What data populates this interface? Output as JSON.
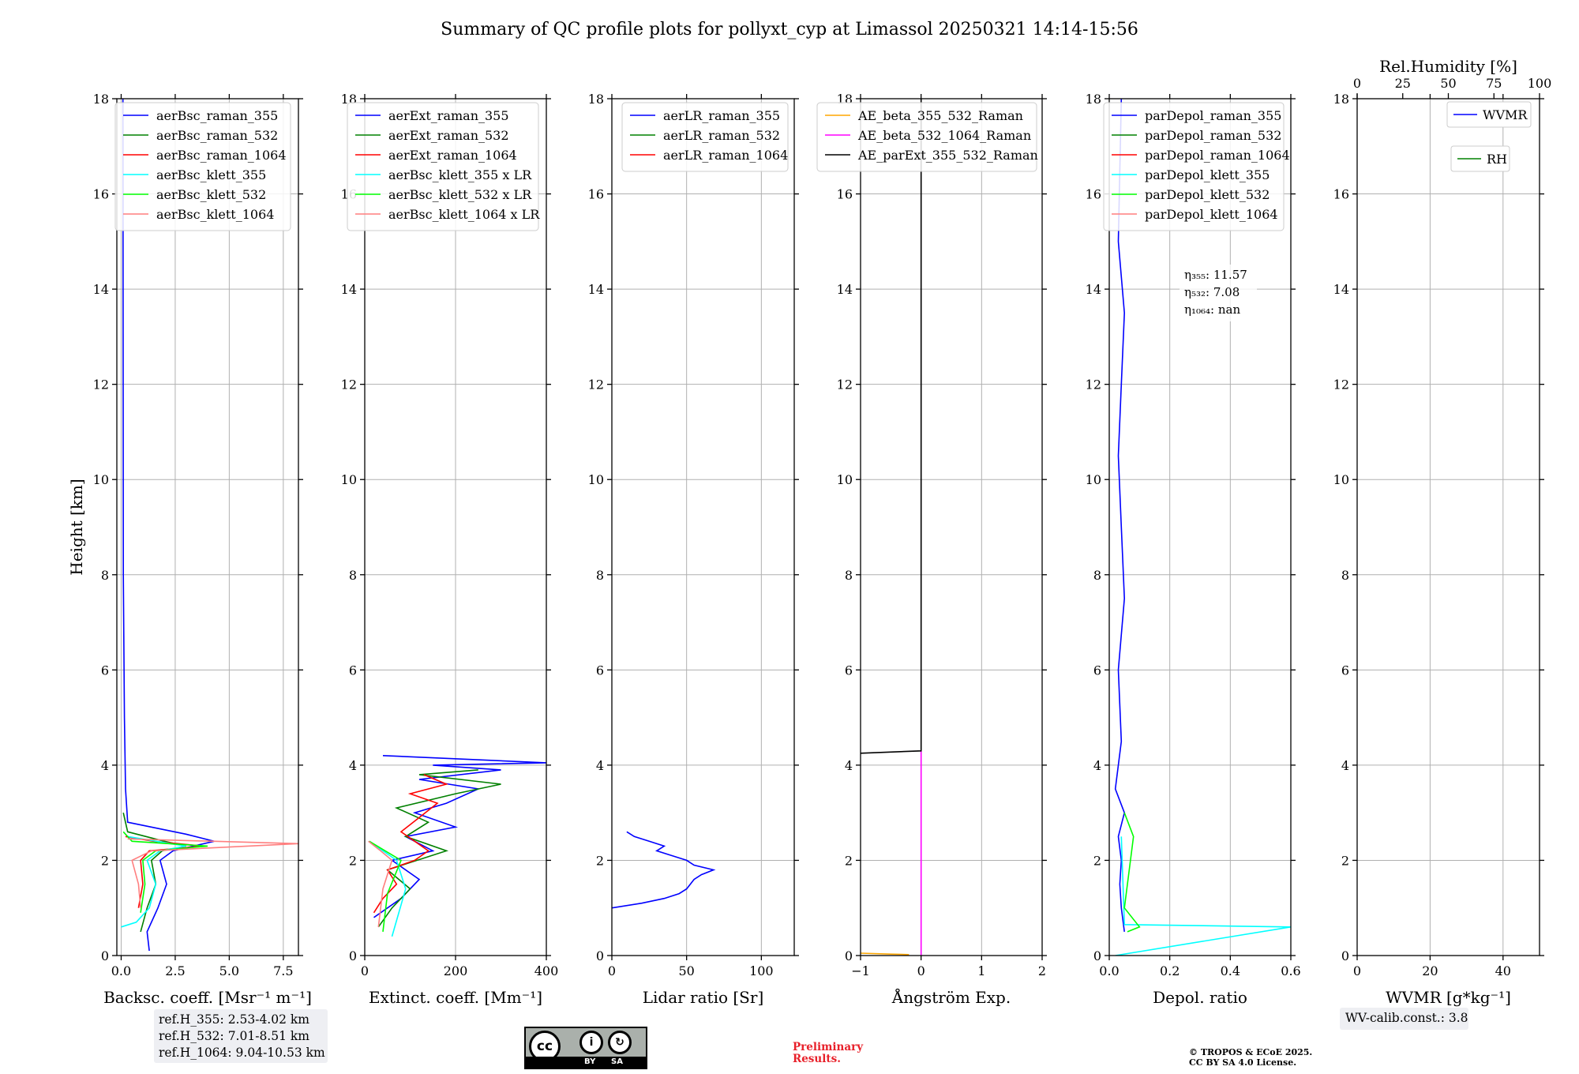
{
  "title": "Summary of QC profile plots for pollyxt_cyp at Limassol 20250321 14:14-15:56",
  "chart_data": [
    {
      "type": "line",
      "panel": "backscatter",
      "xlabel": "Backsc. coeff. [Msr⁻¹ m⁻¹]",
      "ylabel": "Height [km]",
      "xlim": [
        -0.2,
        8.2
      ],
      "ylim": [
        0,
        18
      ],
      "xticks": [
        "0.0",
        "2.5",
        "5.0",
        "7.5"
      ],
      "xtick_values": [
        0,
        2.5,
        5,
        7.5
      ],
      "yticks": [
        "0",
        "2",
        "4",
        "6",
        "8",
        "10",
        "12",
        "14",
        "16",
        "18"
      ],
      "legend": "top-right",
      "series": [
        {
          "name": "aerBsc_raman_355",
          "color": "#0000ff",
          "x": [
            1.3,
            1.2,
            1.7,
            2.1,
            1.8,
            2.4,
            4.3,
            3.0,
            0.3,
            0.2,
            0.15,
            0.1,
            0.08
          ],
          "y": [
            0.1,
            0.5,
            1.0,
            1.5,
            2.0,
            2.2,
            2.4,
            2.55,
            2.8,
            3.5,
            5.0,
            8.0,
            18.0
          ]
        },
        {
          "name": "aerBsc_raman_532",
          "color": "#008000",
          "x": [
            0.9,
            1.2,
            1.6,
            1.4,
            1.9,
            3.0,
            2.0,
            0.3,
            0.1
          ],
          "y": [
            0.5,
            1.0,
            1.5,
            2.0,
            2.2,
            2.3,
            2.4,
            2.6,
            3.0
          ]
        },
        {
          "name": "aerBsc_raman_1064",
          "color": "#ff0000",
          "x": [
            0.8,
            1.0,
            0.9,
            1.3,
            3.8,
            1.5,
            0.2
          ],
          "y": [
            1.0,
            1.5,
            2.0,
            2.2,
            2.3,
            2.4,
            2.5
          ]
        },
        {
          "name": "aerBsc_klett_355",
          "color": "#00ffff",
          "x": [
            0.0,
            0.7,
            1.3,
            1.6,
            1.2,
            1.8,
            3.0,
            0.3
          ],
          "y": [
            0.6,
            0.7,
            1.0,
            1.5,
            2.0,
            2.2,
            2.3,
            2.5
          ]
        },
        {
          "name": "aerBsc_klett_532",
          "color": "#00ff00",
          "x": [
            0.9,
            1.1,
            1.0,
            1.6,
            4.0,
            0.5,
            0.1
          ],
          "y": [
            0.9,
            1.5,
            2.0,
            2.2,
            2.3,
            2.4,
            2.6
          ]
        },
        {
          "name": "aerBsc_klett_1064",
          "color": "#ff7f7f",
          "x": [
            0.9,
            0.8,
            0.5,
            1.4,
            8.2,
            0.3
          ],
          "y": [
            1.0,
            1.5,
            2.0,
            2.2,
            2.35,
            2.45
          ]
        }
      ]
    },
    {
      "type": "line",
      "panel": "extinction",
      "xlabel": "Extinct. coeff. [Mm⁻¹]",
      "xlim": [
        0,
        400
      ],
      "ylim": [
        0,
        18
      ],
      "xticks": [
        "0",
        "200",
        "400"
      ],
      "xtick_values": [
        0,
        200,
        400
      ],
      "yticks": [
        "0",
        "2",
        "4",
        "6",
        "8",
        "10",
        "12",
        "14",
        "16",
        "18"
      ],
      "legend": "top-left",
      "series": [
        {
          "name": "aerExt_raman_355",
          "color": "#0000ff",
          "x": [
            20,
            80,
            120,
            60,
            150,
            90,
            200,
            110,
            180,
            250,
            120,
            300,
            150,
            400,
            40
          ],
          "y": [
            0.8,
            1.2,
            1.6,
            2.0,
            2.2,
            2.5,
            2.7,
            3.0,
            3.2,
            3.5,
            3.7,
            3.9,
            4.0,
            4.05,
            4.2
          ]
        },
        {
          "name": "aerExt_raman_532",
          "color": "#008000",
          "x": [
            30,
            60,
            100,
            50,
            180,
            90,
            140,
            70,
            200,
            300,
            120,
            250
          ],
          "y": [
            0.6,
            1.0,
            1.4,
            1.8,
            2.2,
            2.5,
            2.8,
            3.1,
            3.4,
            3.6,
            3.8,
            3.9
          ]
        },
        {
          "name": "aerExt_raman_1064",
          "color": "#ff0000",
          "x": [
            20,
            40,
            70,
            50,
            110,
            140,
            80,
            120,
            160,
            100,
            180,
            130
          ],
          "y": [
            0.9,
            1.2,
            1.5,
            1.8,
            2.0,
            2.2,
            2.6,
            2.9,
            3.2,
            3.4,
            3.6,
            3.8
          ]
        },
        {
          "name": "aerBsc_klett_355 x LR",
          "color": "#00ffff",
          "x": [
            60,
            90,
            70,
            40,
            10
          ],
          "y": [
            0.4,
            1.4,
            2.0,
            2.2,
            2.4
          ]
        },
        {
          "name": "aerBsc_klett_532 x LR",
          "color": "#00ff00",
          "x": [
            40,
            50,
            80,
            45,
            10
          ],
          "y": [
            0.5,
            1.3,
            2.0,
            2.2,
            2.4
          ]
        },
        {
          "name": "aerBsc_klett_1064 x LR",
          "color": "#ff7f7f",
          "x": [
            30,
            40,
            60,
            35,
            8
          ],
          "y": [
            0.6,
            1.4,
            2.0,
            2.2,
            2.4
          ]
        }
      ]
    },
    {
      "type": "line",
      "panel": "lidar_ratio",
      "xlabel": "Lidar ratio [Sr]",
      "xlim": [
        0,
        122
      ],
      "ylim": [
        0,
        18
      ],
      "xticks": [
        "0",
        "50",
        "100"
      ],
      "xtick_values": [
        0,
        50,
        100
      ],
      "yticks": [
        "0",
        "2",
        "4",
        "6",
        "8",
        "10",
        "12",
        "14",
        "16",
        "18"
      ],
      "legend": "top-center",
      "series": [
        {
          "name": "aerLR_raman_355",
          "color": "#0000ff",
          "x": [
            0,
            20,
            35,
            45,
            50,
            55,
            60,
            68,
            55,
            50,
            40,
            30,
            35,
            25,
            15,
            10
          ],
          "y": [
            1.0,
            1.1,
            1.2,
            1.3,
            1.4,
            1.6,
            1.7,
            1.8,
            1.9,
            2.0,
            2.1,
            2.2,
            2.3,
            2.4,
            2.5,
            2.6
          ]
        },
        {
          "name": "aerLR_raman_532",
          "color": "#008000",
          "x": [],
          "y": []
        },
        {
          "name": "aerLR_raman_1064",
          "color": "#ff0000",
          "x": [],
          "y": []
        }
      ]
    },
    {
      "type": "line",
      "panel": "angstrom",
      "xlabel": "Ångström Exp.",
      "xlim": [
        -1,
        2
      ],
      "ylim": [
        0,
        18
      ],
      "xticks": [
        "−1",
        "0",
        "1",
        "2"
      ],
      "xtick_values": [
        -1,
        0,
        1,
        2
      ],
      "yticks": [
        "0",
        "2",
        "4",
        "6",
        "8",
        "10",
        "12",
        "14",
        "16",
        "18"
      ],
      "legend": "top-center",
      "series": [
        {
          "name": "AE_beta_355_532_Raman",
          "color": "#ffa500",
          "x": [
            -1,
            -0.5,
            -0.2
          ],
          "y": [
            0.05,
            0.03,
            0.02
          ]
        },
        {
          "name": "AE_beta_532_1064_Raman",
          "color": "#ff00ff",
          "x": [
            0,
            0
          ],
          "y": [
            0,
            4.3
          ]
        },
        {
          "name": "AE_parExt_355_532_Raman",
          "color": "#000000",
          "x": [
            0,
            0,
            -1
          ],
          "y": [
            18,
            4.3,
            4.25
          ]
        }
      ]
    },
    {
      "type": "line",
      "panel": "depolarization",
      "xlabel": "Depol. ratio",
      "xlim": [
        0,
        0.6
      ],
      "ylim": [
        0,
        18
      ],
      "xticks": [
        "0.0",
        "0.2",
        "0.4",
        "0.6"
      ],
      "xtick_values": [
        0,
        0.2,
        0.4,
        0.6
      ],
      "yticks": [
        "0",
        "2",
        "4",
        "6",
        "8",
        "10",
        "12",
        "14",
        "16",
        "18"
      ],
      "legend": "top-left",
      "series": [
        {
          "name": "parDepol_raman_355",
          "color": "#0000ff",
          "x": [
            0.05,
            0.04,
            0.035,
            0.04,
            0.03,
            0.05,
            0.02,
            0.04,
            0.03,
            0.05,
            0.04,
            0.03,
            0.04,
            0.05,
            0.03,
            0.04
          ],
          "y": [
            0.5,
            1.0,
            1.5,
            2.0,
            2.5,
            3.0,
            3.5,
            4.5,
            6.0,
            7.5,
            9.0,
            10.5,
            12.0,
            13.5,
            15.0,
            18.0
          ]
        },
        {
          "name": "parDepol_raman_532",
          "color": "#008000",
          "x": [],
          "y": []
        },
        {
          "name": "parDepol_raman_1064",
          "color": "#ff0000",
          "x": [],
          "y": []
        },
        {
          "name": "parDepol_klett_355",
          "color": "#00ffff",
          "x": [
            0.02,
            0.6,
            0.05,
            0.04
          ],
          "y": [
            0.0,
            0.6,
            0.65,
            2.5
          ]
        },
        {
          "name": "parDepol_klett_532",
          "color": "#00ff00",
          "x": [
            0.06,
            0.1,
            0.05,
            0.08,
            0.05
          ],
          "y": [
            0.5,
            0.6,
            1.0,
            2.5,
            3.0
          ]
        },
        {
          "name": "parDepol_klett_1064",
          "color": "#ff7f7f",
          "x": [],
          "y": []
        }
      ],
      "annotations": [
        "η₃₅₅: 11.57",
        "η₅₃₂: 7.08",
        "η₁₀₆₄: nan"
      ]
    },
    {
      "type": "line",
      "panel": "water_vapor",
      "xlabel": "WVMR [g*kg⁻¹]",
      "xlabel2": "Rel.Humidity [%]",
      "xlim": [
        0,
        50
      ],
      "xlim2": [
        0,
        100
      ],
      "ylim": [
        0,
        18
      ],
      "xticks": [
        "0",
        "20",
        "40"
      ],
      "xtick_values": [
        0,
        20,
        40
      ],
      "xticks2": [
        "0",
        "25",
        "50",
        "75",
        "100"
      ],
      "xtick_values2": [
        0,
        25,
        50,
        75,
        100
      ],
      "yticks": [
        "0",
        "2",
        "4",
        "6",
        "8",
        "10",
        "12",
        "14",
        "16",
        "18"
      ],
      "series": [
        {
          "name": "WVMR",
          "color": "#0000ff",
          "x": [],
          "y": []
        },
        {
          "name": "RH",
          "color": "#008000",
          "x": [],
          "y": []
        }
      ]
    }
  ],
  "ref_heights": [
    "ref.H_355: 2.53-4.02 km",
    "ref.H_532: 7.01-8.51 km",
    "ref.H_1064: 9.04-10.53 km"
  ],
  "wv_calib": "WV-calib.const.: 3.8",
  "license_labels": {
    "cc": "cc",
    "by": "BY",
    "sa": "SA"
  },
  "preliminary": "Preliminary\nResults.",
  "copyright": "© TROPOS & ECoE 2025.\nCC BY SA 4.0 License."
}
